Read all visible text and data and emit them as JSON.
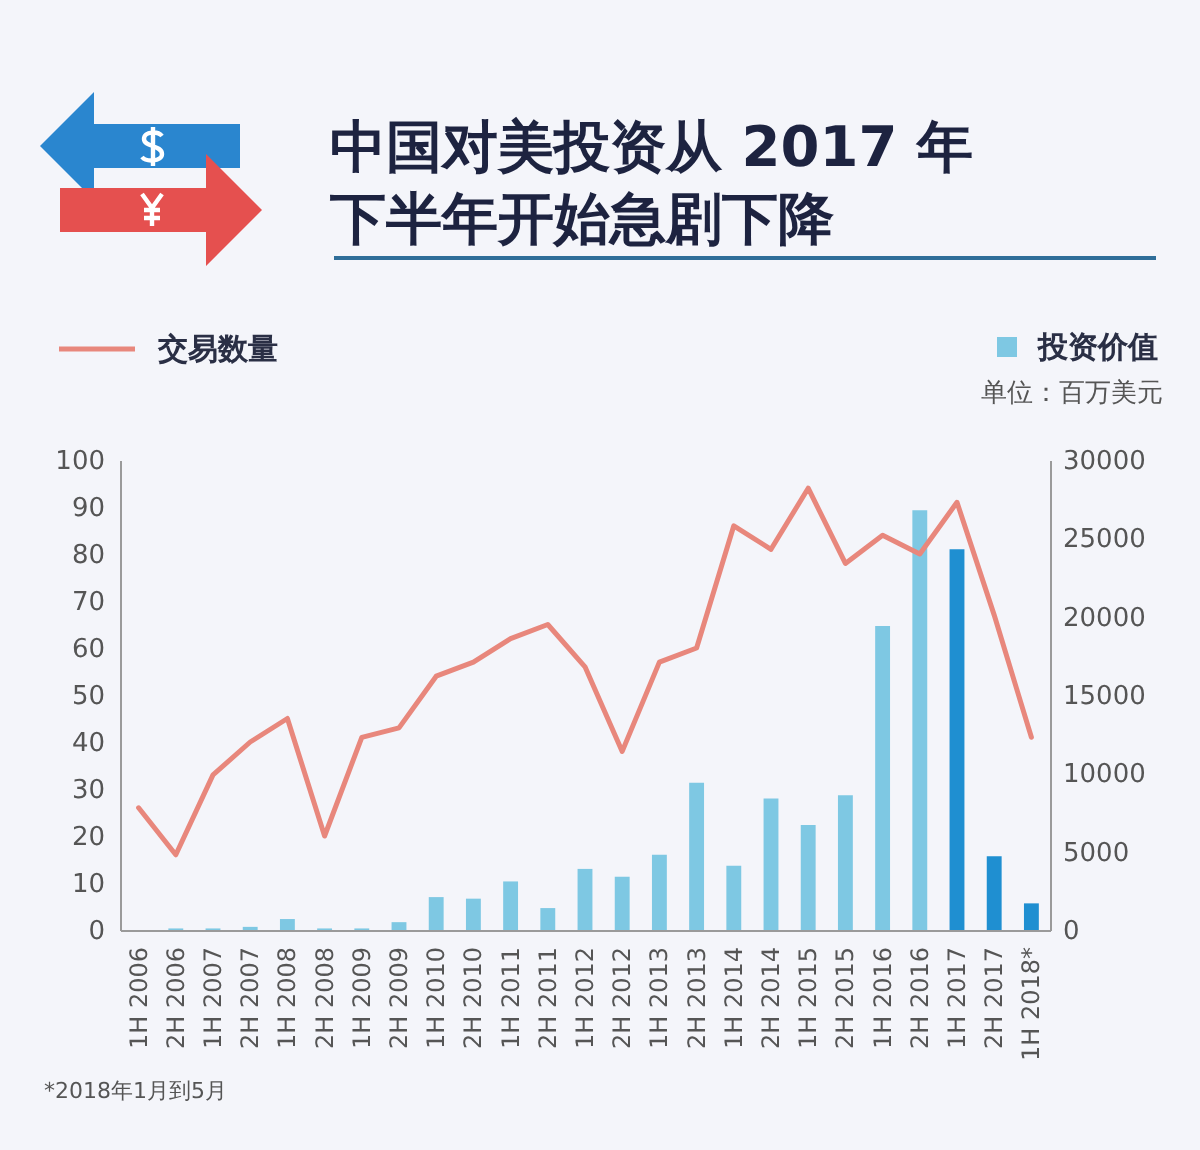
{
  "chart_data": {
    "type": "bar",
    "title": "中国对美投资从 2017 年下半年开始急剧下降",
    "categories": [
      "1H 2006",
      "2H 2006",
      "1H 2007",
      "2H 2007",
      "1H 2008",
      "2H 2008",
      "1H 2009",
      "2H 2009",
      "1H 2010",
      "2H 2010",
      "1H 2011",
      "2H 2011",
      "1H 2012",
      "2H 2012",
      "1H 2013",
      "2H 2013",
      "1H 2014",
      "2H 2014",
      "1H 2015",
      "2H 2015",
      "1H 2016",
      "2H 2016",
      "1H 2017",
      "2H 2017",
      "1H 2018*"
    ],
    "series": [
      {
        "name": "投资价值",
        "axis": "y2",
        "color": "#7ec8e3",
        "colors": [
          "#7ec8e3",
          "#7ec8e3",
          "#7ec8e3",
          "#7ec8e3",
          "#7ec8e3",
          "#7ec8e3",
          "#7ec8e3",
          "#7ec8e3",
          "#7ec8e3",
          "#7ec8e3",
          "#7ec8e3",
          "#7ec8e3",
          "#7ec8e3",
          "#7ec8e3",
          "#7ec8e3",
          "#7ec8e3",
          "#7ec8e3",
          "#7ec8e3",
          "#7ec8e3",
          "#7ec8e3",
          "#7ec8e3",
          "#7ec8e3",
          "#1f8fd1",
          "#1f8fd1",
          "#1f8fd1"
        ],
        "values": [
          0,
          100,
          100,
          200,
          700,
          100,
          100,
          500,
          2100,
          2000,
          3100,
          1400,
          3900,
          3400,
          4800,
          9400,
          4100,
          8400,
          6700,
          8600,
          19400,
          26800,
          24300,
          4700,
          1700
        ]
      },
      {
        "name": "交易数量",
        "type": "line",
        "color": "#e8877c",
        "values": [
          26,
          16,
          33,
          40,
          45,
          20,
          41,
          43,
          54,
          57,
          62,
          65,
          56,
          38,
          57,
          60,
          86,
          81,
          94,
          78,
          84,
          80,
          91,
          67,
          41
        ]
      }
    ],
    "ylim": [
      0,
      100
    ],
    "yticks": [
      0,
      10,
      20,
      30,
      40,
      50,
      60,
      70,
      80,
      90,
      100
    ],
    "y2lim": [
      0,
      30000
    ],
    "y2ticks": [
      0,
      5000,
      10000,
      15000,
      20000,
      25000,
      30000
    ],
    "y2label": "单位：百万美元",
    "annotations": [
      "*2018年1月到5月"
    ],
    "legend": "top",
    "grid": false
  }
}
